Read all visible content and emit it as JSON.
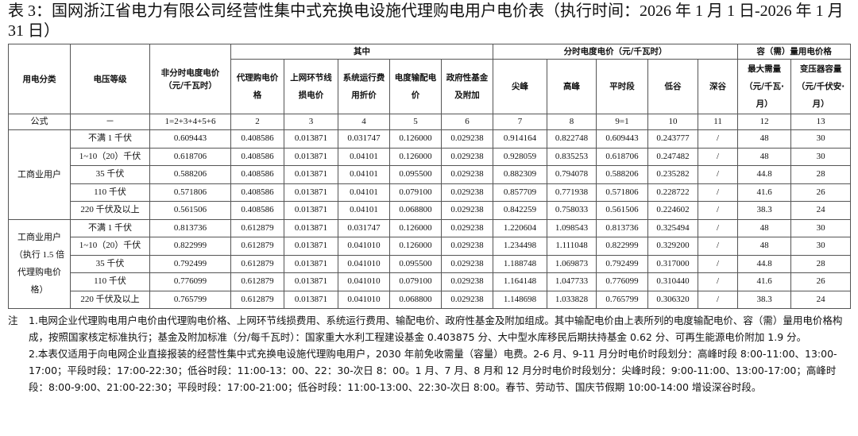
{
  "title": "表 3：国网浙江省电力有限公司经营性集中式充换电设施代理购电用户电价表（执行时间：2026 年 1 月 1 日-2026 年 1 月 31 日）",
  "table": {
    "header": {
      "category": "用电分类",
      "voltage": "电压等级",
      "flat_price": "非分时电度电价（元/千瓦时）",
      "among": "其中",
      "among_cols": [
        "代理购电价格",
        "上网环节线损电价",
        "系统运行费用折价",
        "电度输配电价",
        "政府性基金及附加"
      ],
      "tou": "分时电度电价（元/千瓦时）",
      "tou_cols": [
        "尖峰",
        "高峰",
        "平时段",
        "低谷",
        "深谷"
      ],
      "capacity": "容（需）量用电价格",
      "capacity_cols": [
        "最大需量（元/千瓦·月）",
        "变压器容量（元/千伏安·月）"
      ]
    },
    "formula_row": [
      "公式",
      "－",
      "1=2+3+4+5+6",
      "2",
      "3",
      "4",
      "5",
      "6",
      "7",
      "8",
      "9=1",
      "10",
      "11",
      "12",
      "13"
    ],
    "groups": [
      {
        "label": "工商业用户",
        "rows": [
          {
            "voltage": "不满 1 千伏",
            "values": [
              "0.609443",
              "0.408586",
              "0.013871",
              "0.031747",
              "0.126000",
              "0.029238",
              "0.914164",
              "0.822748",
              "0.609443",
              "0.243777",
              "/",
              "48",
              "30"
            ]
          },
          {
            "voltage": "1~10（20）千伏",
            "values": [
              "0.618706",
              "0.408586",
              "0.013871",
              "0.04101",
              "0.126000",
              "0.029238",
              "0.928059",
              "0.835253",
              "0.618706",
              "0.247482",
              "/",
              "48",
              "30"
            ]
          },
          {
            "voltage": "35 千伏",
            "values": [
              "0.588206",
              "0.408586",
              "0.013871",
              "0.04101",
              "0.095500",
              "0.029238",
              "0.882309",
              "0.794078",
              "0.588206",
              "0.235282",
              "/",
              "44.8",
              "28"
            ]
          },
          {
            "voltage": "110 千伏",
            "values": [
              "0.571806",
              "0.408586",
              "0.013871",
              "0.04101",
              "0.079100",
              "0.029238",
              "0.857709",
              "0.771938",
              "0.571806",
              "0.228722",
              "/",
              "41.6",
              "26"
            ]
          },
          {
            "voltage": "220 千伏及以上",
            "values": [
              "0.561506",
              "0.408586",
              "0.013871",
              "0.04101",
              "0.068800",
              "0.029238",
              "0.842259",
              "0.758033",
              "0.561506",
              "0.224602",
              "/",
              "38.3",
              "24"
            ]
          }
        ]
      },
      {
        "label": "工商业用户（执行 1.5 倍代理购电价格）",
        "rows": [
          {
            "voltage": "不满 1 千伏",
            "values": [
              "0.813736",
              "0.612879",
              "0.013871",
              "0.031747",
              "0.126000",
              "0.029238",
              "1.220604",
              "1.098543",
              "0.813736",
              "0.325494",
              "/",
              "48",
              "30"
            ]
          },
          {
            "voltage": "1~10（20）千伏",
            "values": [
              "0.822999",
              "0.612879",
              "0.013871",
              "0.041010",
              "0.126000",
              "0.029238",
              "1.234498",
              "1.111048",
              "0.822999",
              "0.329200",
              "/",
              "48",
              "30"
            ]
          },
          {
            "voltage": "35 千伏",
            "values": [
              "0.792499",
              "0.612879",
              "0.013871",
              "0.041010",
              "0.095500",
              "0.029238",
              "1.188748",
              "1.069873",
              "0.792499",
              "0.317000",
              "/",
              "44.8",
              "28"
            ]
          },
          {
            "voltage": "110 千伏",
            "values": [
              "0.776099",
              "0.612879",
              "0.013871",
              "0.041010",
              "0.079100",
              "0.029238",
              "1.164148",
              "1.047733",
              "0.776099",
              "0.310440",
              "/",
              "41.6",
              "26"
            ]
          },
          {
            "voltage": "220 千伏及以上",
            "values": [
              "0.765799",
              "0.612879",
              "0.013871",
              "0.041010",
              "0.068800",
              "0.029238",
              "1.148698",
              "1.033828",
              "0.765799",
              "0.306320",
              "/",
              "38.3",
              "24"
            ]
          }
        ]
      }
    ]
  },
  "notes": {
    "label": "注",
    "items": [
      "1.电网企业代理购电用户电价由代理购电价格、上网环节线损费用、系统运行费用、输配电价、政府性基金及附加组成。其中输配电价由上表所列的电度输配电价、容（需）量用电价格构成，按照国家核定标准执行；基金及附加标准（分/每千瓦时）：国家重大水利工程建设基金 0.403875 分、大中型水库移民后期扶持基金 0.62 分、可再生能源电价附加 1.9 分。",
      "2.本表仅适用于向电网企业直接报装的经营性集中式充换电设施代理购电用户，2030 年前免收需量（容量）电费。2-6 月、9-11 月分时电价时段划分：高峰时段 8:00-11:00、13:00-17:00；平段时段：17:00-22:30；低谷时段：11:00-13：00、22：30-次日 8：00。1 月、7 月、8 月和 12 月分时电价时段划分：尖峰时段：9:00-11:00、13:00-17:00；高峰时段：8:00-9:00、21:00-22:30；平段时段：17:00-21:00；低谷时段：11:00-13:00、22:30-次日 8:00。春节、劳动节、国庆节假期 10:00-14:00 增设深谷时段。"
    ]
  }
}
